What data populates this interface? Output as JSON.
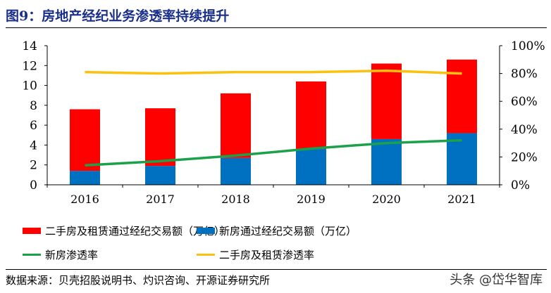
{
  "title": "图9：房地产经纪业务渗透率持续提升",
  "source": "数据来源：贝壳招股说明书、灼识咨询、开源证券研究所",
  "watermark": "头条 @岱华智库",
  "colors": {
    "secondhand": "#ff0000",
    "new": "#0070c0",
    "new_rate": "#1aa14a",
    "secondhand_rate": "#fcc10f"
  },
  "chart_data": {
    "type": "bar",
    "categories": [
      "2016",
      "2017",
      "2018",
      "2019",
      "2020",
      "2021"
    ],
    "stacked": true,
    "series": [
      {
        "name": "新房通过经纪交易额（万亿）",
        "type": "bar",
        "axis": "left",
        "values": [
          1.4,
          1.9,
          2.7,
          3.6,
          4.6,
          5.2
        ]
      },
      {
        "name": "二手房及租赁通过经纪交易额（万亿）",
        "type": "bar",
        "axis": "left",
        "values": [
          6.2,
          5.8,
          6.5,
          6.8,
          7.6,
          7.4
        ]
      },
      {
        "name": "新房渗透率",
        "type": "line",
        "axis": "right",
        "values": [
          14,
          17,
          21,
          26,
          30,
          32
        ]
      },
      {
        "name": "二手房及租赁渗透率",
        "type": "line",
        "axis": "right",
        "values": [
          81,
          80,
          81,
          81,
          82,
          80
        ]
      }
    ],
    "ylim": [
      0,
      14
    ],
    "yticks": [
      "0",
      "2",
      "4",
      "6",
      "8",
      "10",
      "12",
      "14"
    ],
    "y2lim": [
      0,
      100
    ],
    "y2ticks": [
      "0%",
      "20%",
      "40%",
      "60%",
      "80%",
      "100%"
    ],
    "legend_position": "bottom",
    "legend": [
      "二手房及租赁通过经纪交易额（万亿）",
      "新房通过经纪交易额（万亿）",
      "新房渗透率",
      "二手房及租赁渗透率"
    ]
  }
}
